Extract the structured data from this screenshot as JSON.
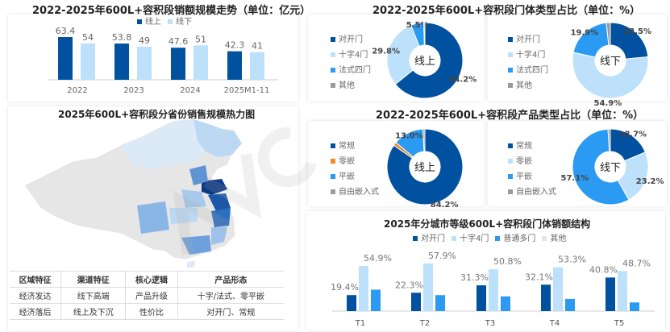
{
  "colors": {
    "dark": "#0052a0",
    "light": "#bde0fb",
    "mid": "#2b9af3",
    "gray": "#9a9a9a",
    "orange": "#f08a24"
  },
  "watermark": "AVC 奥维云网 ALL VIEW CLOUD",
  "chart_data": [
    {
      "type": "bar",
      "title": "2022-2025年600L+容积段销额规模走势（单位：亿元）",
      "categories": [
        "2022",
        "2023",
        "2024",
        "2025M1-11"
      ],
      "series": [
        {
          "name": "线上",
          "values": [
            63.4,
            53.8,
            47.6,
            42.3
          ]
        },
        {
          "name": "线下",
          "values": [
            54,
            49,
            51,
            41
          ]
        }
      ],
      "ylim": [
        0,
        70
      ],
      "legend": "top"
    },
    {
      "type": "pie",
      "title": "2022-2025年600L+容积段门体类型占比（单位：%）",
      "center_label": "线上",
      "categories": [
        "对开门",
        "十字4门",
        "法式四门",
        "其他"
      ],
      "values": [
        64.2,
        29.8,
        5.5,
        0.5
      ],
      "labels": [
        "64.2%",
        "29.8%",
        "5.5%",
        ""
      ]
    },
    {
      "type": "pie",
      "center_label": "线下",
      "categories": [
        "对开门",
        "十字4门",
        "法式四门",
        "其他"
      ],
      "values": [
        23.5,
        54.9,
        19.9,
        1.7
      ],
      "labels": [
        "23.5%",
        "54.9%",
        "19.9%",
        ""
      ]
    },
    {
      "type": "pie",
      "title": "2022-2025年600L+容积段产品类型占比（单位：%）",
      "center_label": "线上",
      "categories": [
        "常规",
        "零嵌",
        "平嵌",
        "自由嵌入式"
      ],
      "values": [
        84.2,
        1.5,
        13.0,
        0.8
      ],
      "labels": [
        "84.2%",
        "",
        "13.0%",
        ""
      ]
    },
    {
      "type": "pie",
      "center_label": "线下",
      "categories": [
        "常规",
        "零嵌",
        "平嵌",
        "自由嵌入式"
      ],
      "values": [
        18.7,
        23.2,
        57.1,
        1.0
      ],
      "labels": [
        "18.7%",
        "23.2%",
        "57.1%",
        ""
      ]
    },
    {
      "type": "bar",
      "title": "2025年分城市等级600L+容积段门体销额结构",
      "categories": [
        "T1",
        "T2",
        "T3",
        "T4",
        "T5"
      ],
      "series": [
        {
          "name": "对开门",
          "values": [
            19.4,
            22.3,
            31.3,
            32.1,
            40.8
          ],
          "labeled": true
        },
        {
          "name": "十字4门",
          "values": [
            54.9,
            57.9,
            50.8,
            53.3,
            48.7
          ],
          "labeled": true
        },
        {
          "name": "普通多门",
          "values": [
            26,
            19.4,
            17.8,
            14.8,
            10.5
          ],
          "labeled": false
        },
        {
          "name": "其他",
          "values": [
            0,
            0,
            0,
            0,
            0
          ],
          "labeled": false
        }
      ],
      "ylim": [
        0,
        65
      ],
      "legend": "top"
    }
  ],
  "map": {
    "title": "2025年600L+容积段分省份销售规模热力图"
  },
  "table": {
    "headers": [
      "区域特征",
      "渠道特征",
      "核心逻辑",
      "产品形态"
    ],
    "rows": [
      [
        "经济发达",
        "线下高端",
        "产品升级",
        "十字/法式、零平嵌"
      ],
      [
        "经济落后",
        "线上及下沉",
        "性价比",
        "对开门、常规"
      ]
    ]
  }
}
